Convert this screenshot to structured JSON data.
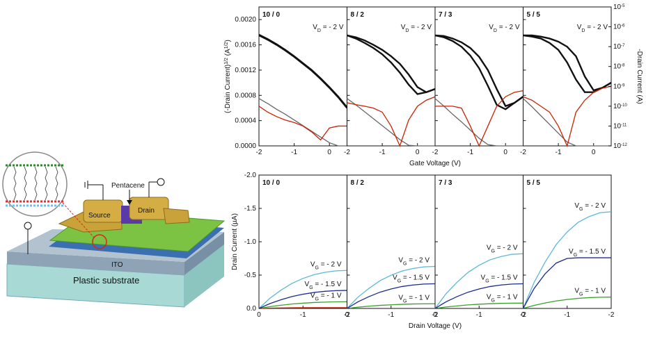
{
  "schematic": {
    "labels": [
      "Pentacene",
      "Source",
      "Drain",
      "ITO",
      "Plastic substrate"
    ]
  },
  "chart_data": [
    {
      "type": "line",
      "xlabel": "Gate Voltage (V)",
      "ylabel": [
        {
          "text": "(-Drain Current)"
        },
        {
          "sup": "1/2"
        },
        {
          "text": " (A"
        },
        {
          "sup": "1/2"
        },
        {
          "text": ")"
        }
      ],
      "y2label": "-Drain Current (A)",
      "x": [
        -2,
        -1.75,
        -1.5,
        -1.25,
        -1,
        -0.75,
        -0.5,
        -0.25,
        0,
        0.25,
        0.5
      ],
      "xlim": [
        -2,
        0.5
      ],
      "xticks": [
        -2,
        -1,
        0
      ],
      "ylim": [
        0,
        0.0022
      ],
      "yticks": [
        {
          "value": 0,
          "label": "0.0000"
        },
        {
          "value": 0.0004,
          "label": "0.0004"
        },
        {
          "value": 0.0008,
          "label": "0.0008"
        },
        {
          "value": 0.0012,
          "label": "0.0012"
        },
        {
          "value": 0.0016,
          "label": "0.0016"
        },
        {
          "value": 0.002,
          "label": "0.0020"
        }
      ],
      "y2log": true,
      "y2lim": [
        1e-12,
        1e-05
      ],
      "y2ticks": [
        {
          "value": 1e-12,
          "label": "10",
          "exponent": "-12"
        },
        {
          "value": 1e-11,
          "label": "10",
          "exponent": "-11"
        },
        {
          "value": 1e-10,
          "label": "10",
          "exponent": "-10"
        },
        {
          "value": 1e-09,
          "label": "10",
          "exponent": "-9"
        },
        {
          "value": 1e-08,
          "label": "10",
          "exponent": "-8"
        },
        {
          "value": 1e-07,
          "label": "10",
          "exponent": "-7"
        },
        {
          "value": 1e-06,
          "label": "10",
          "exponent": "-6"
        },
        {
          "value": 1e-05,
          "label": "10",
          "exponent": "-5"
        }
      ],
      "panels": [
        {
          "title": "10 / 0",
          "annotation": [
            {
              "text": "V"
            },
            {
              "sub": "D"
            },
            {
              "text": " = - 2 V"
            }
          ],
          "series": [
            {
              "color": "#111111",
              "values": [
                0.00175,
                0.00168,
                0.0016,
                0.00151,
                0.00141,
                0.0013,
                0.00119,
                0.00106,
                0.00092,
                0.00077,
                0.0006
              ]
            },
            {
              "color": "#111111",
              "values": [
                0.00176,
                0.00169,
                0.00161,
                0.00152,
                0.00142,
                0.00131,
                0.0012,
                0.00107,
                0.00093,
                0.00078,
                0.00061
              ]
            },
            {
              "color": "#666666",
              "values": [
                0.00075,
                0.00067,
                0.00058,
                0.0005,
                0.00041,
                0.00032,
                0.00023,
                0.00014,
                5e-05,
                0,
                0
              ]
            },
            {
              "color": "#cc2200",
              "axis": "y2",
              "values": [
                1e-10,
                5e-11,
                3e-11,
                2e-11,
                1.5e-11,
                1e-11,
                5e-12,
                2e-12,
                8e-12,
                1e-11,
                1e-11
              ]
            }
          ]
        },
        {
          "title": "8 / 2",
          "annotation": [
            {
              "text": "V"
            },
            {
              "sub": "D"
            },
            {
              "text": " = - 2 V"
            }
          ],
          "series": [
            {
              "color": "#111111",
              "values": [
                0.00175,
                0.0017,
                0.00163,
                0.00155,
                0.00145,
                0.00132,
                0.00116,
                0.00097,
                0.00082,
                0.00085,
                0.0009
              ]
            },
            {
              "color": "#111111",
              "values": [
                0.00175,
                0.00172,
                0.00167,
                0.0016,
                0.00152,
                0.00142,
                0.0013,
                0.00113,
                0.00093,
                0.00085,
                0.0009
              ]
            },
            {
              "color": "#666666",
              "values": [
                0.00075,
                0.00065,
                0.00054,
                0.00043,
                0.00032,
                0.00021,
                0.0001,
                1e-05,
                0,
                0,
                0
              ]
            },
            {
              "color": "#cc2200",
              "axis": "y2",
              "values": [
                1.5e-10,
                1.2e-10,
                1e-10,
                8e-11,
                5e-11,
                1e-11,
                1e-12,
                2e-11,
                1e-10,
                2e-10,
                3e-10
              ]
            }
          ]
        },
        {
          "title": "7 / 3",
          "annotation": [
            {
              "text": "V"
            },
            {
              "sub": "D"
            },
            {
              "text": " = - 2 V"
            }
          ],
          "series": [
            {
              "color": "#111111",
              "values": [
                0.00175,
                0.00172,
                0.00166,
                0.00157,
                0.00143,
                0.00123,
                0.00095,
                0.00065,
                0.00058,
                0.00068,
                0.00078
              ]
            },
            {
              "color": "#111111",
              "values": [
                0.00175,
                0.00174,
                0.0017,
                0.00164,
                0.00155,
                0.00141,
                0.0012,
                0.0009,
                0.00063,
                0.00068,
                0.00078
              ]
            },
            {
              "color": "#666666",
              "values": [
                0.00075,
                0.00063,
                0.0005,
                0.00038,
                0.00025,
                0.00012,
                2e-05,
                0,
                0,
                0,
                0
              ]
            },
            {
              "color": "#cc2200",
              "axis": "y2",
              "values": [
                1e-10,
                1e-10,
                1e-10,
                8e-11,
                1e-11,
                1e-12,
                1e-11,
                1e-10,
                3e-10,
                5e-10,
                6e-10
              ]
            }
          ]
        },
        {
          "title": "5 / 5",
          "annotation": [
            {
              "text": "V"
            },
            {
              "sub": "D"
            },
            {
              "text": " = - 2 V"
            }
          ],
          "series": [
            {
              "color": "#111111",
              "values": [
                0.00175,
                0.00173,
                0.0017,
                0.00163,
                0.00152,
                0.00132,
                0.00105,
                0.00085,
                0.00085,
                0.00092,
                0.001
              ]
            },
            {
              "color": "#111111",
              "values": [
                0.00175,
                0.00175,
                0.00173,
                0.0017,
                0.00165,
                0.00157,
                0.00142,
                0.0011,
                0.00088,
                0.00092,
                0.001
              ]
            },
            {
              "color": "#666666",
              "values": [
                0.00075,
                0.00062,
                0.00048,
                0.00034,
                0.0002,
                6e-05,
                0,
                0,
                0,
                0,
                0
              ]
            },
            {
              "color": "#cc2200",
              "axis": "y2",
              "values": [
                3e-10,
                2e-10,
                1e-10,
                5e-11,
                1e-11,
                1e-12,
                5e-11,
                2e-10,
                5e-10,
                8e-10,
                1e-09
              ]
            }
          ]
        }
      ]
    },
    {
      "type": "line",
      "xlabel": "Drain Voltage (V)",
      "ylabel": "Drain Current (µA)",
      "x": [
        0,
        -0.25,
        -0.5,
        -0.75,
        -1,
        -1.25,
        -1.5,
        -1.75,
        -2
      ],
      "xlim": [
        0,
        -2
      ],
      "xticks": [
        0,
        -1,
        -2
      ],
      "ylim": [
        0,
        -2
      ],
      "yticks": [
        {
          "value": 0,
          "label": "0.0"
        },
        {
          "value": -0.5,
          "label": "-0.5"
        },
        {
          "value": -1,
          "label": "-1.0"
        },
        {
          "value": -1.5,
          "label": "-1.5"
        },
        {
          "value": -2,
          "label": "-2.0"
        }
      ],
      "panels": [
        {
          "title": "10 / 0",
          "series": [
            {
              "color": "#5bb8d8",
              "label": [
                {
                  "text": "V"
                },
                {
                  "sub": "G"
                },
                {
                  "text": " = - 2 V"
                }
              ],
              "values": [
                0,
                -0.154,
                -0.274,
                -0.376,
                -0.45,
                -0.507,
                -0.542,
                -0.564,
                -0.57
              ]
            },
            {
              "color": "#1c2a8c",
              "label": [
                {
                  "text": "V"
                },
                {
                  "sub": "G"
                },
                {
                  "text": " = - 1.5 V"
                }
              ],
              "values": [
                0,
                -0.073,
                -0.13,
                -0.178,
                -0.213,
                -0.24,
                -0.257,
                -0.267,
                -0.27
              ]
            },
            {
              "color": "#3aa02a",
              "label": [
                {
                  "text": "V"
                },
                {
                  "sub": "G"
                },
                {
                  "text": " = - 1 V"
                }
              ],
              "values": [
                0,
                -0.027,
                -0.048,
                -0.066,
                -0.079,
                -0.089,
                -0.095,
                -0.099,
                -0.1
              ]
            },
            {
              "color": "#cc2200",
              "values": [
                0,
                -0.005,
                -0.008,
                -0.01,
                -0.011,
                -0.012,
                -0.012,
                -0.012,
                -0.012
              ]
            }
          ]
        },
        {
          "title": "8 / 2",
          "series": [
            {
              "color": "#5bb8d8",
              "label": [
                {
                  "text": "V"
                },
                {
                  "sub": "G"
                },
                {
                  "text": " = - 2 V"
                }
              ],
              "values": [
                0,
                -0.17,
                -0.302,
                -0.416,
                -0.498,
                -0.561,
                -0.599,
                -0.624,
                -0.63
              ]
            },
            {
              "color": "#1c2a8c",
              "label": [
                {
                  "text": "V"
                },
                {
                  "sub": "G"
                },
                {
                  "text": " = - 1.5 V"
                }
              ],
              "values": [
                0,
                -0.1,
                -0.178,
                -0.244,
                -0.292,
                -0.329,
                -0.352,
                -0.366,
                -0.37
              ]
            },
            {
              "color": "#3aa02a",
              "label": [
                {
                  "text": "V"
                },
                {
                  "sub": "G"
                },
                {
                  "text": " = - 1 V"
                }
              ],
              "values": [
                0,
                -0.019,
                -0.034,
                -0.046,
                -0.055,
                -0.062,
                -0.067,
                -0.069,
                -0.07
              ]
            }
          ]
        },
        {
          "title": "7 / 3",
          "series": [
            {
              "color": "#5bb8d8",
              "label": [
                {
                  "text": "V"
                },
                {
                  "sub": "G"
                },
                {
                  "text": " = - 2 V"
                }
              ],
              "values": [
                0,
                -0.221,
                -0.394,
                -0.541,
                -0.648,
                -0.73,
                -0.779,
                -0.812,
                -0.82
              ]
            },
            {
              "color": "#1c2a8c",
              "label": [
                {
                  "text": "V"
                },
                {
                  "sub": "G"
                },
                {
                  "text": " = - 1.5 V"
                }
              ],
              "values": [
                0,
                -0.1,
                -0.178,
                -0.244,
                -0.292,
                -0.329,
                -0.352,
                -0.366,
                -0.37
              ]
            },
            {
              "color": "#3aa02a",
              "label": [
                {
                  "text": "V"
                },
                {
                  "sub": "G"
                },
                {
                  "text": " = - 1 V"
                }
              ],
              "values": [
                0,
                -0.022,
                -0.038,
                -0.053,
                -0.063,
                -0.071,
                -0.076,
                -0.079,
                -0.08
              ]
            }
          ]
        },
        {
          "title": "5 / 5",
          "series": [
            {
              "color": "#5bb8d8",
              "label": [
                {
                  "text": "V"
                },
                {
                  "sub": "G"
                },
                {
                  "text": " = - 2 V"
                }
              ],
              "values": [
                0,
                -0.392,
                -0.696,
                -0.957,
                -1.146,
                -1.291,
                -1.378,
                -1.436,
                -1.45
              ]
            },
            {
              "color": "#1c2a8c",
              "label": [
                {
                  "text": "V"
                },
                {
                  "sub": "G"
                },
                {
                  "text": " = - 1.5 V"
                }
              ],
              "values": [
                0,
                -0.3,
                -0.52,
                -0.68,
                -0.75,
                -0.76,
                -0.76,
                -0.76,
                -0.76
              ]
            },
            {
              "color": "#3aa02a",
              "label": [
                {
                  "text": "V"
                },
                {
                  "sub": "G"
                },
                {
                  "text": " = - 1 V"
                }
              ],
              "values": [
                0,
                -0.046,
                -0.082,
                -0.112,
                -0.134,
                -0.151,
                -0.162,
                -0.168,
                -0.17
              ]
            }
          ]
        }
      ]
    }
  ]
}
